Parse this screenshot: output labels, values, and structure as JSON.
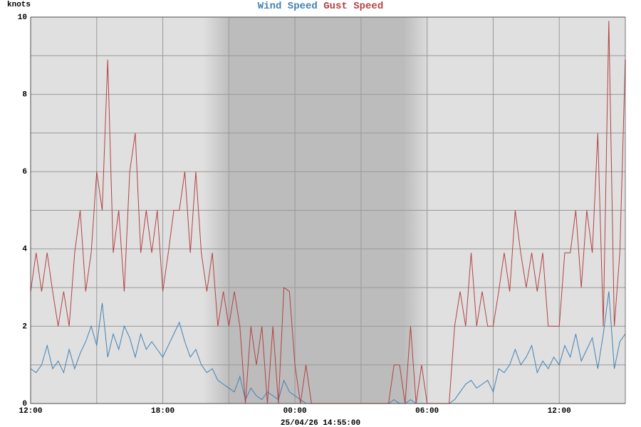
{
  "chart_data": {
    "type": "line",
    "y_label": "knots",
    "x_label": "25/04/26 14:55:00",
    "x": [
      0,
      0.25,
      0.5,
      0.75,
      1,
      1.25,
      1.5,
      1.75,
      2,
      2.25,
      2.5,
      2.75,
      3,
      3.25,
      3.5,
      3.75,
      4,
      4.25,
      4.5,
      4.75,
      5,
      5.25,
      5.5,
      5.75,
      6,
      6.25,
      6.5,
      6.75,
      7,
      7.25,
      7.5,
      7.75,
      8,
      8.25,
      8.5,
      8.75,
      9,
      9.25,
      9.5,
      9.75,
      10,
      10.25,
      10.5,
      10.75,
      11,
      11.25,
      11.5,
      11.75,
      12,
      12.25,
      12.5,
      12.75,
      13,
      13.25,
      13.5,
      13.75,
      14,
      14.25,
      14.5,
      14.75,
      15,
      15.25,
      15.5,
      15.75,
      16,
      16.25,
      16.5,
      16.75,
      17,
      17.25,
      17.5,
      17.75,
      18,
      18.25,
      18.5,
      18.75,
      19,
      19.25,
      19.5,
      19.75,
      20,
      20.25,
      20.5,
      20.75,
      21,
      21.25,
      21.5,
      21.75,
      22,
      22.25,
      22.5,
      22.75,
      23,
      23.25,
      23.5,
      23.75,
      24,
      24.25,
      24.5,
      24.75,
      25,
      25.25,
      25.5,
      25.75,
      26,
      26.25,
      26.5,
      26.75,
      27
    ],
    "series": [
      {
        "name": "Wind Speed",
        "color": "#4282b4",
        "values": [
          0.9,
          0.8,
          1,
          1.5,
          0.9,
          1.1,
          0.8,
          1.4,
          0.9,
          1.3,
          1.6,
          2,
          1.5,
          2.6,
          1.2,
          1.8,
          1.4,
          2,
          1.7,
          1.2,
          1.8,
          1.4,
          1.6,
          1.4,
          1.2,
          1.5,
          1.8,
          2.1,
          1.6,
          1.2,
          1.4,
          1,
          0.8,
          0.9,
          0.6,
          0.5,
          0.4,
          0.3,
          0.7,
          0.1,
          0.4,
          0.2,
          0.1,
          0.3,
          0.2,
          0.1,
          0.6,
          0.3,
          0.2,
          0.1,
          0,
          0,
          0,
          0,
          0,
          0,
          0,
          0,
          0,
          0,
          0,
          0,
          0,
          0,
          0,
          0,
          0.1,
          0,
          0,
          0.1,
          0,
          0,
          0,
          0,
          0,
          0,
          0,
          0.1,
          0.3,
          0.5,
          0.6,
          0.4,
          0.5,
          0.6,
          0.3,
          0.9,
          0.8,
          1,
          1.4,
          1,
          1.2,
          1.5,
          0.8,
          1.1,
          0.9,
          1.2,
          1,
          1.5,
          1.2,
          1.8,
          1.1,
          1.4,
          1.7,
          0.9,
          1.8,
          2.9,
          0.9,
          1.6,
          1.8
        ]
      },
      {
        "name": "Gust Speed",
        "color": "#b44242",
        "values": [
          2.9,
          3.9,
          2.9,
          3.9,
          2.9,
          2,
          2.9,
          2,
          3.9,
          5,
          2.9,
          3.9,
          6,
          5,
          8.9,
          3.9,
          5,
          2.9,
          6,
          7,
          3.9,
          5,
          3.9,
          5,
          2.9,
          3.9,
          5,
          5,
          6,
          3.9,
          6,
          3.9,
          2.9,
          3.9,
          2,
          2.9,
          2,
          2.9,
          2,
          0,
          2,
          1,
          2,
          0,
          2,
          0,
          3,
          2.9,
          1,
          0,
          1,
          0,
          0,
          0,
          0,
          0,
          0,
          0,
          0,
          0,
          0,
          0,
          0,
          0,
          0,
          0,
          1,
          1,
          0,
          2,
          0,
          1,
          0,
          0,
          0,
          0,
          0,
          2,
          2.9,
          2,
          3.9,
          2,
          2.9,
          2,
          2,
          2.9,
          3.9,
          2.9,
          5,
          3.9,
          3,
          3.9,
          2.9,
          3.9,
          2,
          2,
          2,
          3.9,
          3.9,
          5,
          3,
          5,
          3.9,
          7,
          2,
          9.9,
          2,
          3.9,
          8.9
        ]
      }
    ],
    "xlim": [
      0,
      27
    ],
    "xticks": [
      {
        "value": 0,
        "label": "12:00"
      },
      {
        "value": 6,
        "label": "18:00"
      },
      {
        "value": 12,
        "label": "00:00"
      },
      {
        "value": 18,
        "label": "06:00"
      },
      {
        "value": 24,
        "label": "12:00"
      }
    ],
    "x_minor_ticks": [
      3,
      9,
      15,
      21
    ],
    "ylim": [
      0,
      10
    ],
    "yticks": [
      0,
      2,
      4,
      6,
      8,
      10
    ],
    "y_minor_ticks": [
      1,
      3,
      5,
      7,
      9
    ],
    "grid": true
  }
}
